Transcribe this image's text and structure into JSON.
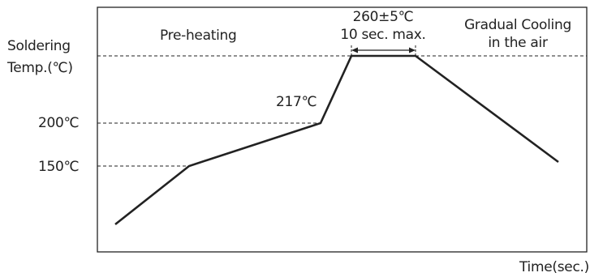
{
  "diagram": {
    "y_axis_label_line1": "Soldering",
    "y_axis_label_line2": "Temp.(℃)",
    "tick_200": "200℃",
    "tick_150": "150℃",
    "label_217": "217℃",
    "phase_preheating": "Pre-heating",
    "peak_line1": "260±5℃",
    "peak_line2": "10 sec. max.",
    "cooling_line1": "Gradual Cooling",
    "cooling_line2": "in the air",
    "x_axis_label": "Time(sec.)",
    "colors": {
      "line": "#222222",
      "background": "#ffffff"
    }
  },
  "chart_data": {
    "type": "line",
    "title": "",
    "xlabel": "Time(sec.)",
    "ylabel": "Soldering Temp.(℃)",
    "y_ticks": [
      150,
      200
    ],
    "series": [
      {
        "points": [
          {
            "temp": 150
          },
          {
            "temp": 217
          },
          {
            "temp": 260
          },
          {
            "temp": 260
          }
        ]
      }
    ],
    "annotations": [
      "Pre-heating",
      "217℃",
      "260±5℃",
      "10 sec. max.",
      "Gradual Cooling",
      "in the air"
    ]
  }
}
